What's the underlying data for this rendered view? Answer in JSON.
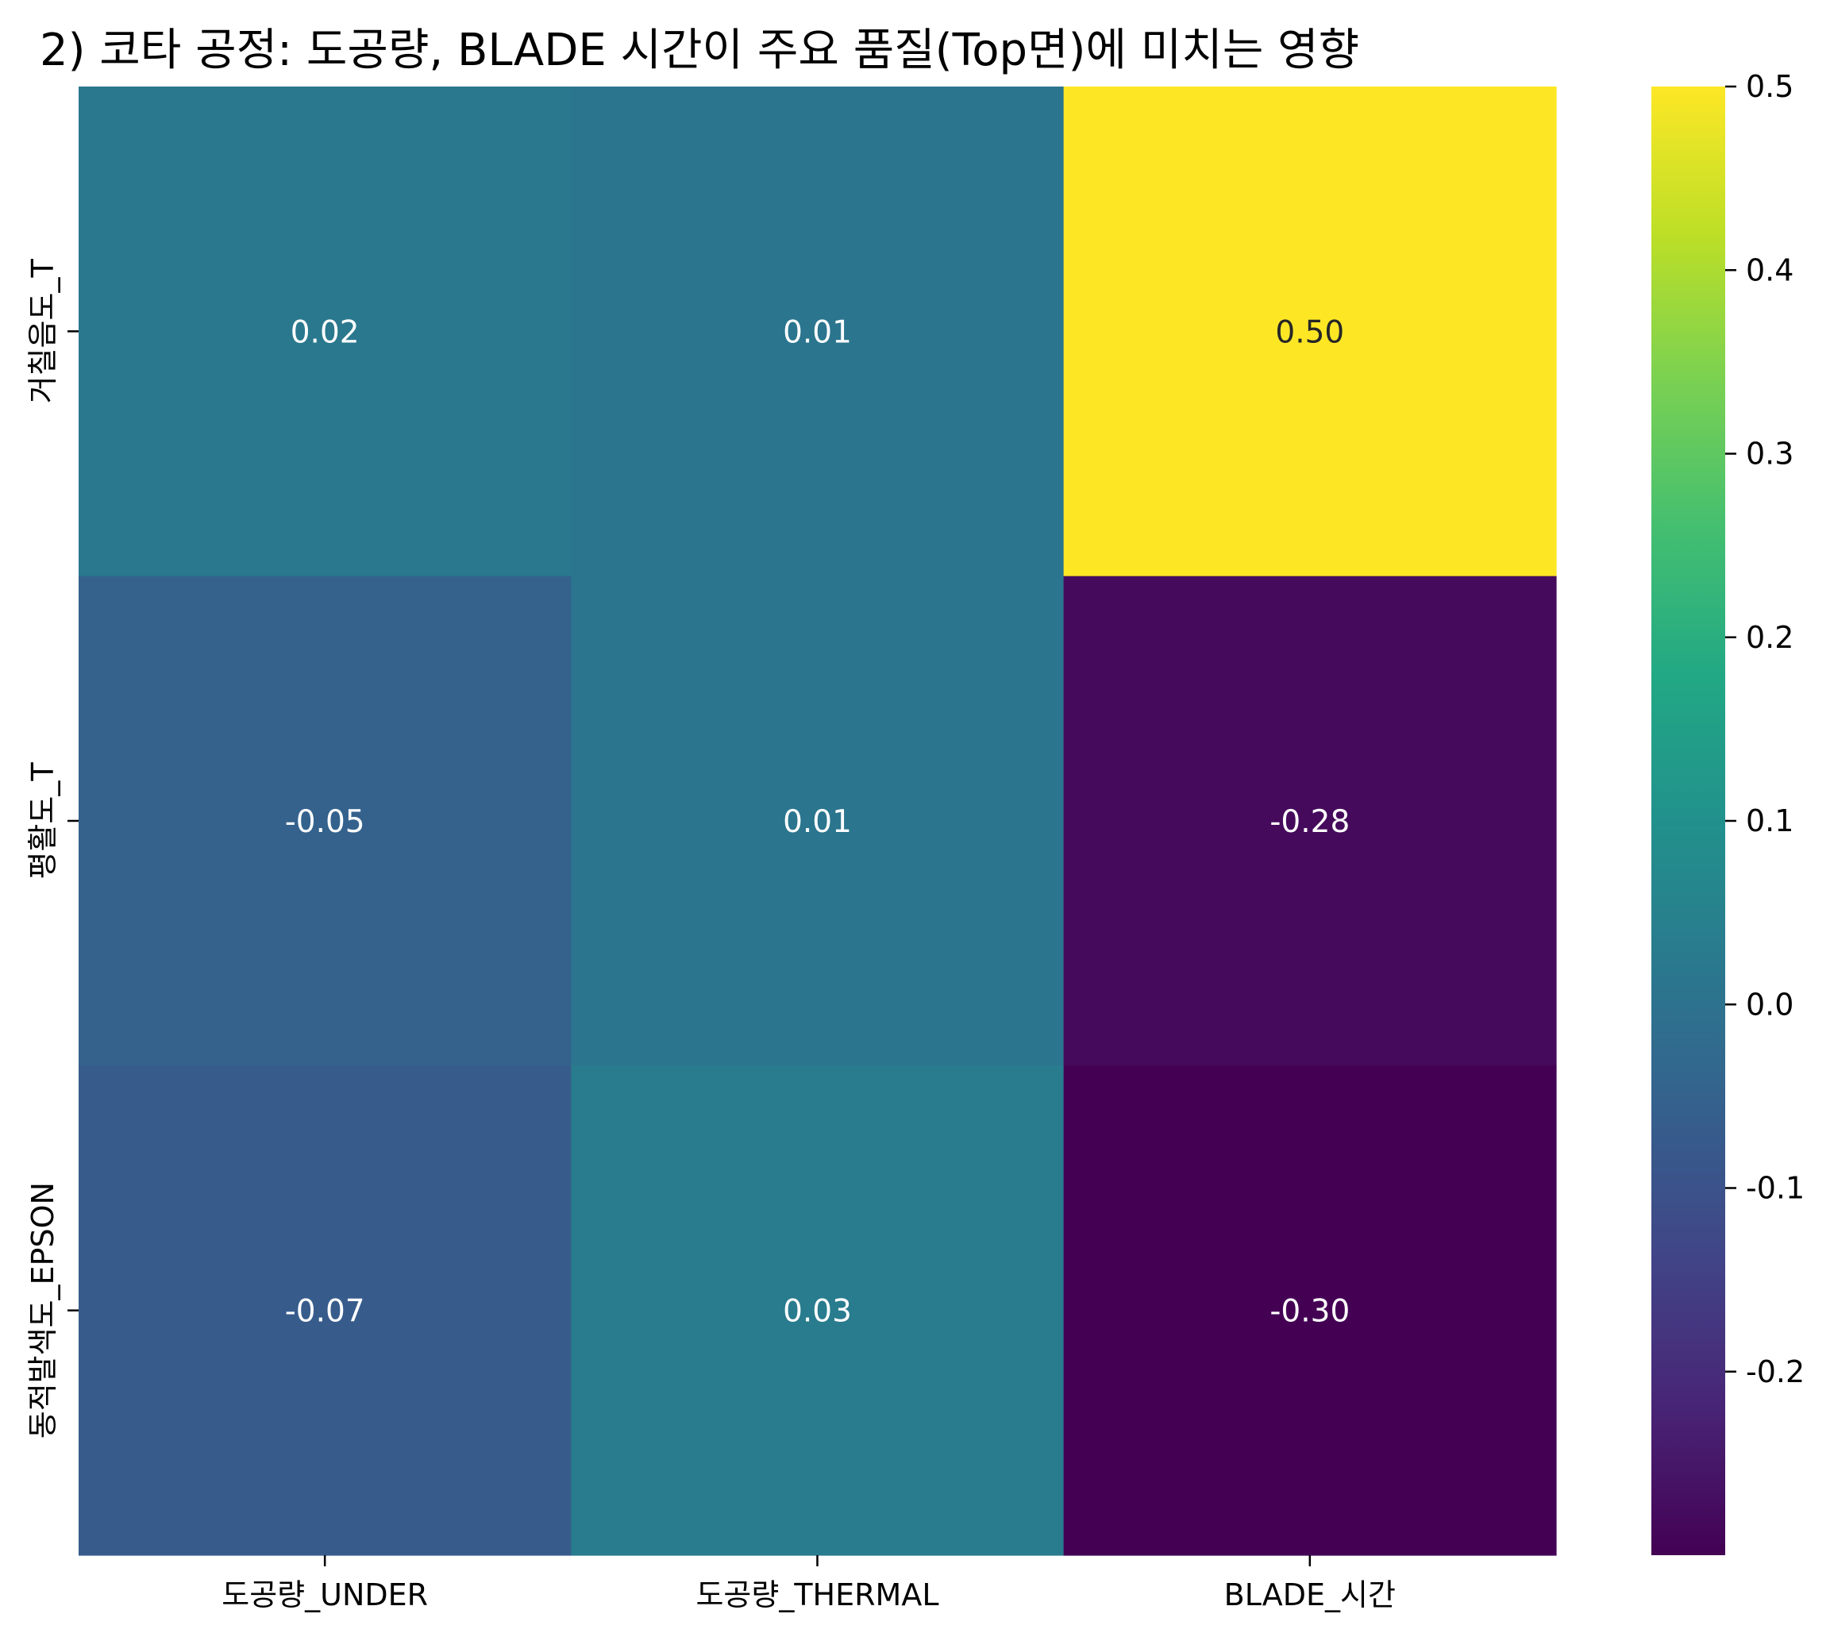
{
  "chart_data": {
    "type": "heatmap",
    "title": "2) 코타 공정: 도공량, BLADE 시간이 주요 품질(Top면)에 미치는 영향",
    "x_categories": [
      "도공량_UNDER",
      "도공량_THERMAL",
      "BLADE_시간"
    ],
    "y_categories": [
      "거칠음도_T",
      "평활도_T",
      "동적발색도_EPSON"
    ],
    "values": [
      [
        0.02,
        0.01,
        0.5
      ],
      [
        -0.05,
        0.01,
        -0.28
      ],
      [
        -0.07,
        0.03,
        -0.3
      ]
    ],
    "value_labels": [
      [
        "0.02",
        "0.01",
        "0.50"
      ],
      [
        "-0.05",
        "0.01",
        "-0.28"
      ],
      [
        "-0.07",
        "0.03",
        "-0.30"
      ]
    ],
    "colormap": "viridis",
    "vmin": -0.3,
    "vmax": 0.5,
    "colorbar_ticks": [
      0.5,
      0.4,
      0.3,
      0.2,
      0.1,
      0.0,
      -0.1,
      -0.2
    ],
    "colorbar_tick_labels": [
      "0.5",
      "0.4",
      "0.3",
      "0.2",
      "0.1",
      "0.0",
      "-0.1",
      "-0.2"
    ],
    "xlabel": "",
    "ylabel": ""
  }
}
